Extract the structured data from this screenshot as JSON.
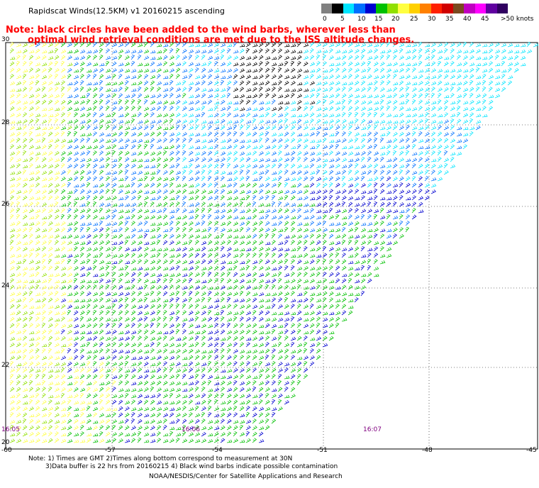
{
  "title": "Rapidscat Winds(12.5KM) v1 20160215 ascending",
  "note": {
    "line1": "Note: black circles have been added to the wind barbs, wherever less than",
    "line2": "optimal wind retrieval conditions are met due to the ISS altitude changes."
  },
  "colorbar": {
    "colors": [
      "#808080",
      "#000000",
      "#00e5ff",
      "#0070ff",
      "#0000d0",
      "#00c000",
      "#90e000",
      "#ffff40",
      "#ffd000",
      "#ff8000",
      "#ff2000",
      "#d00000",
      "#7a4a20",
      "#c000c0",
      "#ff00ff",
      "#6000a0",
      "#300060"
    ],
    "labels": [
      "0",
      "5",
      "10",
      "15",
      "20",
      "25",
      "30",
      "35",
      "40",
      "45",
      ">50 knots"
    ]
  },
  "lat_labels": [
    "30",
    "28",
    "26",
    "24",
    "22",
    "20"
  ],
  "lon_labels": [
    "-60",
    "-57",
    "-54",
    "-51",
    "-48",
    "-45"
  ],
  "time_labels": [
    "16:05",
    "16:06",
    "16:07"
  ],
  "footer": {
    "line1": "Note: 1) Times are GMT 2)Times along bottom correspond to measurement at 30N",
    "line2": "3)Data buffer is 22 hrs from 20160215 4) Black wind barbs indicate possible contamination",
    "line3": "NOAA/NESDIS/Center for Satellite Applications and Research"
  }
}
